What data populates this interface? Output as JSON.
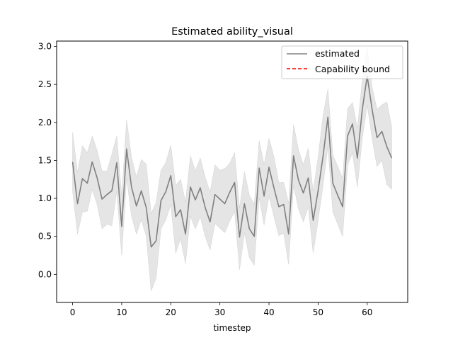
{
  "chart_data": {
    "type": "line",
    "title": "Estimated ability_visual",
    "xlabel": "timestep",
    "ylabel": "",
    "xlim": [
      -3.25,
      68.25
    ],
    "ylim": [
      -0.37,
      3.07
    ],
    "xticks": [
      0,
      10,
      20,
      30,
      40,
      50,
      60
    ],
    "yticks": [
      0.0,
      0.5,
      1.0,
      1.5,
      2.0,
      2.5,
      3.0
    ],
    "xtick_labels": [
      "0",
      "10",
      "20",
      "30",
      "40",
      "50",
      "60"
    ],
    "ytick_labels": [
      "0.0",
      "0.5",
      "1.0",
      "1.5",
      "2.0",
      "2.5",
      "3.0"
    ],
    "grid": false,
    "legend_position": "top-right",
    "legend": [
      "estimated",
      "Capability bound"
    ],
    "colors": {
      "estimated": "#808080",
      "band": "#e5e5e5",
      "bound": "#ff0000"
    },
    "x": [
      0,
      1,
      2,
      3,
      4,
      5,
      6,
      7,
      8,
      9,
      10,
      11,
      12,
      13,
      14,
      15,
      16,
      17,
      18,
      19,
      20,
      21,
      22,
      23,
      24,
      25,
      26,
      27,
      28,
      29,
      30,
      31,
      32,
      33,
      34,
      35,
      36,
      37,
      38,
      39,
      40,
      41,
      42,
      43,
      44,
      45,
      46,
      47,
      48,
      49,
      50,
      51,
      52,
      53,
      54,
      55,
      56,
      57,
      58,
      59,
      60,
      61,
      62,
      63,
      64,
      65
    ],
    "series": [
      {
        "name": "estimated",
        "values": [
          1.48,
          0.93,
          1.26,
          1.2,
          1.48,
          1.27,
          0.99,
          1.05,
          1.1,
          1.47,
          0.63,
          1.65,
          1.15,
          0.9,
          1.1,
          0.88,
          0.36,
          0.44,
          0.97,
          1.09,
          1.3,
          0.76,
          0.85,
          0.53,
          1.15,
          0.98,
          1.14,
          0.88,
          0.69,
          1.05,
          0.99,
          0.93,
          1.08,
          1.21,
          0.49,
          0.93,
          0.6,
          0.5,
          1.4,
          1.03,
          1.41,
          1.14,
          0.89,
          0.92,
          0.53,
          1.56,
          1.24,
          1.07,
          1.27,
          0.71,
          1.1,
          1.55,
          2.07,
          1.2,
          1.04,
          0.89,
          1.82,
          1.98,
          1.53,
          2.17,
          2.61,
          2.17,
          1.8,
          1.88,
          1.68,
          1.53
        ],
        "lower": [
          1.1,
          0.53,
          0.82,
          0.83,
          1.12,
          0.92,
          0.6,
          0.66,
          0.64,
          1.1,
          0.25,
          1.27,
          0.77,
          0.53,
          0.72,
          0.5,
          -0.22,
          -0.05,
          0.6,
          0.72,
          0.92,
          0.28,
          0.47,
          0.14,
          0.77,
          0.6,
          0.76,
          0.5,
          0.32,
          0.67,
          0.61,
          0.55,
          0.7,
          0.83,
          0.06,
          0.55,
          0.22,
          0.12,
          1.01,
          0.65,
          1.03,
          0.76,
          0.51,
          0.54,
          0.13,
          1.18,
          0.86,
          0.69,
          0.89,
          0.28,
          0.71,
          1.17,
          1.69,
          0.82,
          0.66,
          0.5,
          1.44,
          1.6,
          1.15,
          1.79,
          2.23,
          1.79,
          1.42,
          1.5,
          1.18,
          1.12
        ],
        "upper": [
          1.87,
          1.34,
          1.69,
          1.6,
          1.82,
          1.63,
          1.36,
          1.36,
          1.58,
          1.82,
          1.03,
          2.03,
          1.54,
          1.28,
          1.51,
          1.45,
          0.8,
          0.94,
          1.37,
          1.47,
          1.7,
          1.17,
          1.25,
          0.95,
          1.56,
          1.36,
          1.53,
          1.28,
          1.08,
          1.44,
          1.37,
          1.39,
          1.46,
          1.6,
          0.87,
          1.35,
          1.04,
          0.92,
          1.76,
          1.44,
          1.79,
          1.55,
          1.21,
          1.21,
          0.93,
          1.97,
          1.64,
          1.44,
          1.66,
          1.09,
          1.54,
          2.08,
          2.44,
          1.57,
          1.42,
          1.26,
          2.18,
          2.26,
          1.92,
          2.55,
          2.99,
          2.46,
          2.17,
          2.23,
          2.27,
          1.94
        ]
      }
    ]
  }
}
